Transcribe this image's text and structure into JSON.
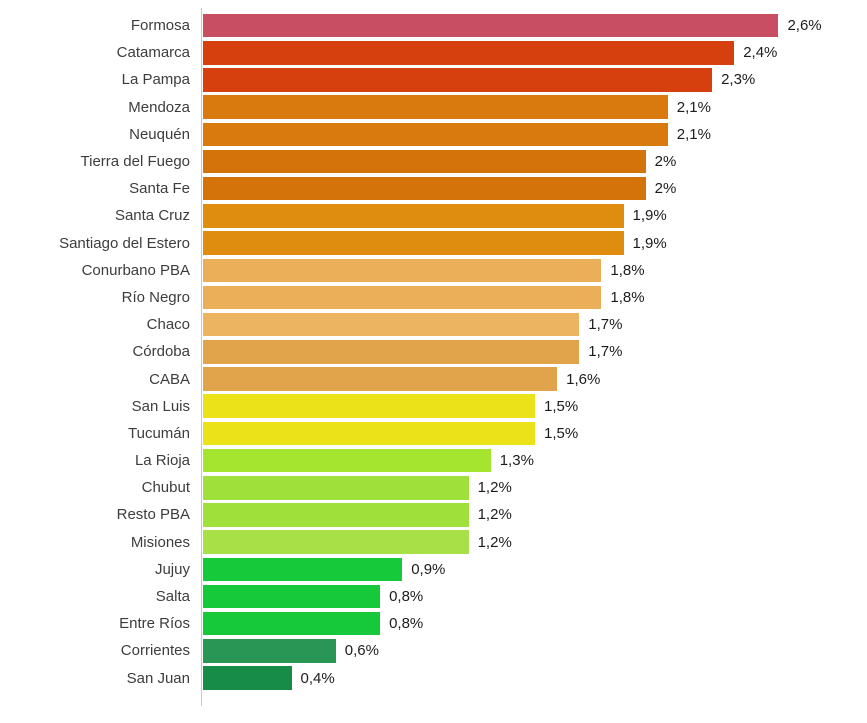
{
  "chart_data": {
    "type": "bar",
    "orientation": "horizontal",
    "title": "",
    "xlabel": "",
    "ylabel": "",
    "xlim": [
      0,
      3.0
    ],
    "grid": false,
    "legend": "none",
    "value_format": "percent-comma-decimal",
    "categories": [
      "Formosa",
      "Catamarca",
      "La Pampa",
      "Mendoza",
      "Neuquén",
      "Tierra del Fuego",
      "Santa Fe",
      "Santa Cruz",
      "Santiago del Estero",
      "Conurbano PBA",
      "Río Negro",
      "Chaco",
      "Córdoba",
      "CABA",
      "San Luis",
      "Tucumán",
      "La Rioja",
      "Chubut",
      "Resto PBA",
      "Misiones",
      "Jujuy",
      "Salta",
      "Entre Ríos",
      "Corrientes",
      "San Juan"
    ],
    "values": [
      2.6,
      2.4,
      2.3,
      2.1,
      2.1,
      2.0,
      2.0,
      1.9,
      1.9,
      1.8,
      1.8,
      1.7,
      1.7,
      1.6,
      1.5,
      1.5,
      1.3,
      1.2,
      1.2,
      1.2,
      0.9,
      0.8,
      0.8,
      0.6,
      0.4
    ],
    "value_labels": [
      "2,6%",
      "2,4%",
      "2,3%",
      "2,1%",
      "2,1%",
      "2%",
      "2%",
      "1,9%",
      "1,9%",
      "1,8%",
      "1,8%",
      "1,7%",
      "1,7%",
      "1,6%",
      "1,5%",
      "1,5%",
      "1,3%",
      "1,2%",
      "1,2%",
      "1,2%",
      "0,9%",
      "0,8%",
      "0,8%",
      "0,6%",
      "0,4%"
    ],
    "bar_colors": [
      "#c84f63",
      "#d6400f",
      "#d6400f",
      "#d97a0e",
      "#d97a0e",
      "#d3730a",
      "#d3730a",
      "#de8d0f",
      "#de8d0f",
      "#eaaf58",
      "#eaaf58",
      "#ecb361",
      "#e2a44b",
      "#e2a44b",
      "#ece21a",
      "#ece21a",
      "#a6e52f",
      "#9fe03a",
      "#9fe03a",
      "#a8e048",
      "#15c93a",
      "#15c93a",
      "#15c93a",
      "#2a9655",
      "#168c48"
    ]
  },
  "colors": {
    "background": "#ffffff",
    "axis_line": "#c9c9c9",
    "category_text": "#3d3d3d",
    "value_text": "#1c1c1c"
  }
}
